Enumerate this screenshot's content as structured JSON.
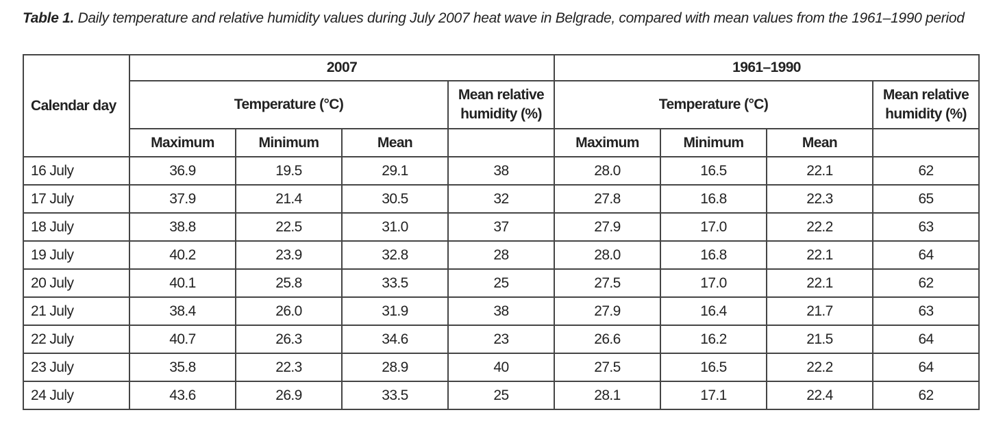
{
  "caption": {
    "label": "Table 1.",
    "text": " Daily temperature and relative humidity values during July 2007 heat wave in Belgrade, compared with mean values from the 1961–1990 period"
  },
  "header": {
    "calendar_day": "Calendar day",
    "group_2007": "2007",
    "group_1961_1990": "1961–1990",
    "temperature": "Temperature (°C)",
    "humidity": "Mean relative humidity (%)",
    "maximum": "Maximum",
    "minimum": "Minimum",
    "mean": "Mean"
  },
  "rows": [
    [
      "16 July",
      "36.9",
      "19.5",
      "29.1",
      "38",
      "28.0",
      "16.5",
      "22.1",
      "62"
    ],
    [
      "17 July",
      "37.9",
      "21.4",
      "30.5",
      "32",
      "27.8",
      "16.8",
      "22.3",
      "65"
    ],
    [
      "18 July",
      "38.8",
      "22.5",
      "31.0",
      "37",
      "27.9",
      "17.0",
      "22.2",
      "63"
    ],
    [
      "19 July",
      "40.2",
      "23.9",
      "32.8",
      "28",
      "28.0",
      "16.8",
      "22.1",
      "64"
    ],
    [
      "20 July",
      "40.1",
      "25.8",
      "33.5",
      "25",
      "27.5",
      "17.0",
      "22.1",
      "62"
    ],
    [
      "21 July",
      "38.4",
      "26.0",
      "31.9",
      "38",
      "27.9",
      "16.4",
      "21.7",
      "63"
    ],
    [
      "22 July",
      "40.7",
      "26.3",
      "34.6",
      "23",
      "26.6",
      "16.2",
      "21.5",
      "64"
    ],
    [
      "23 July",
      "35.8",
      "22.3",
      "28.9",
      "40",
      "27.5",
      "16.5",
      "22.2",
      "64"
    ],
    [
      "24 July",
      "43.6",
      "26.9",
      "33.5",
      "25",
      "28.1",
      "17.1",
      "22.4",
      "62"
    ]
  ]
}
